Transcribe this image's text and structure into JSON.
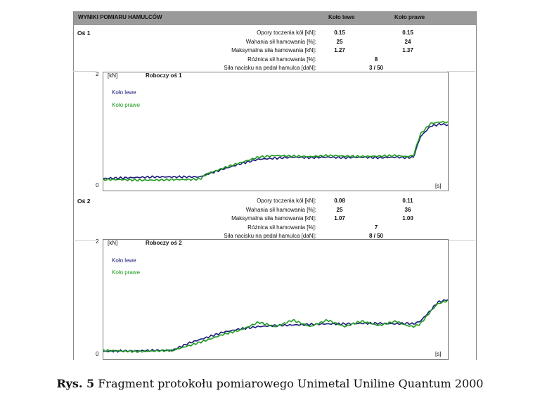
{
  "header": {
    "title": "WYNIKI POMIARU HAMULCÓW",
    "col_left": "Koło lewe",
    "col_right": "Koło prawe"
  },
  "axle1": {
    "label": "Oś 1",
    "rows": [
      {
        "label": "Opory toczenia kół [kN]:",
        "left": "0.15",
        "right": "0.15"
      },
      {
        "label": "Wahania sił hamowania [%]:",
        "left": "25",
        "right": "24"
      },
      {
        "label": "Maksymalna siła hamowania [kN]:",
        "left": "1.27",
        "right": "1.37"
      },
      {
        "label": "Różnica sił hamowania [%]:",
        "mid": "8"
      },
      {
        "label": "Siła nacisku na pedał hamulca [daN]:",
        "mid": "3 /  50"
      }
    ]
  },
  "axle2": {
    "label": "Oś 2",
    "rows": [
      {
        "label": "Opory toczenia kół [kN]:",
        "left": "0.08",
        "right": "0.11"
      },
      {
        "label": "Wahania sił hamowania [%]:",
        "left": "25",
        "right": "36"
      },
      {
        "label": "Maksymalna siła hamowania [kN]:",
        "left": "1.07",
        "right": "1.00"
      },
      {
        "label": "Różnica sił hamowania [%]:",
        "mid": "7"
      },
      {
        "label": "Siła nacisku na pedał hamulca [daN]:",
        "mid": "8 /  50"
      }
    ]
  },
  "chart_data": [
    {
      "type": "line",
      "title": "Roboczy oś 1",
      "ylabel": "[kN]",
      "xlabel": "[s]",
      "ylim": [
        0,
        2
      ],
      "yticks": [
        "2",
        "0"
      ],
      "legend": "top-left",
      "x": [
        0,
        0.05,
        0.1,
        0.15,
        0.2,
        0.25,
        0.28,
        0.3,
        0.35,
        0.4,
        0.45,
        0.5,
        0.55,
        0.6,
        0.65,
        0.7,
        0.75,
        0.8,
        0.85,
        0.88,
        0.9,
        0.92,
        0.95,
        0.98,
        1.0
      ],
      "series": [
        {
          "name": "Koło lewe",
          "color": "#1a1a7a",
          "values": [
            0.12,
            0.13,
            0.14,
            0.15,
            0.15,
            0.15,
            0.15,
            0.2,
            0.3,
            0.4,
            0.48,
            0.5,
            0.52,
            0.51,
            0.52,
            0.51,
            0.52,
            0.51,
            0.52,
            0.51,
            0.52,
            0.9,
            1.1,
            1.14,
            1.12
          ]
        },
        {
          "name": "Koło prawe",
          "color": "#1f9a1f",
          "values": [
            0.1,
            0.1,
            0.09,
            0.09,
            0.1,
            0.1,
            0.11,
            0.2,
            0.32,
            0.42,
            0.52,
            0.55,
            0.54,
            0.53,
            0.55,
            0.54,
            0.53,
            0.54,
            0.55,
            0.53,
            0.55,
            0.95,
            1.15,
            1.18,
            1.17
          ]
        }
      ]
    },
    {
      "type": "line",
      "title": "Roboczy oś 2",
      "ylabel": "[kN]",
      "xlabel": "[s]",
      "ylim": [
        0,
        2
      ],
      "yticks": [
        "2",
        "0"
      ],
      "legend": "top-left",
      "x": [
        0,
        0.05,
        0.1,
        0.15,
        0.2,
        0.25,
        0.3,
        0.35,
        0.4,
        0.45,
        0.5,
        0.55,
        0.6,
        0.65,
        0.7,
        0.75,
        0.8,
        0.85,
        0.88,
        0.9,
        0.92,
        0.95,
        0.97,
        1.0
      ],
      "series": [
        {
          "name": "Koło lewe",
          "color": "#1a1a7a",
          "values": [
            0.04,
            0.05,
            0.05,
            0.06,
            0.06,
            0.2,
            0.3,
            0.4,
            0.46,
            0.5,
            0.52,
            0.53,
            0.54,
            0.55,
            0.55,
            0.56,
            0.56,
            0.55,
            0.56,
            0.55,
            0.6,
            0.8,
            0.95,
            1.0
          ]
        },
        {
          "name": "Koło prawe",
          "color": "#1f9a1f",
          "values": [
            0.06,
            0.05,
            0.04,
            0.05,
            0.06,
            0.15,
            0.25,
            0.36,
            0.44,
            0.58,
            0.5,
            0.62,
            0.5,
            0.62,
            0.5,
            0.6,
            0.52,
            0.6,
            0.52,
            0.5,
            0.55,
            0.78,
            0.92,
            0.98
          ]
        }
      ]
    }
  ],
  "caption": {
    "bold": "Rys. 5",
    "text": "Fragment protokołu pomiarowego Unimetal Uniline Quantum 2000"
  }
}
